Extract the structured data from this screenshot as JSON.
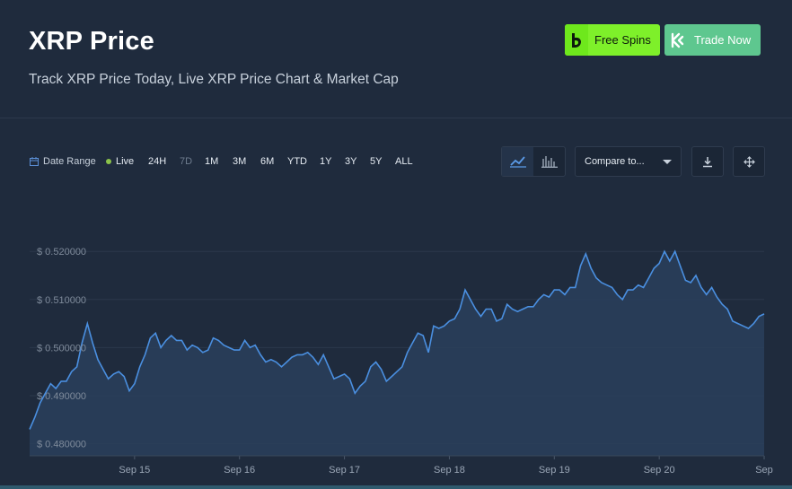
{
  "header": {
    "title": "XRP Price",
    "subtitle": "Track XRP Price Today, Live XRP Price Chart & Market Cap",
    "free_spins_label": "Free Spins",
    "trade_now_label": "Trade Now"
  },
  "toolbar": {
    "date_range_label": "Date Range",
    "live_label": "Live",
    "ranges": [
      "24H",
      "7D",
      "1M",
      "3M",
      "6M",
      "YTD",
      "1Y",
      "3Y",
      "5Y",
      "ALL"
    ],
    "selected_range": "7D",
    "compare_label": "Compare to...",
    "chart_type_selected": "line"
  },
  "colors": {
    "background": "#1f2b3d",
    "line": "#4a8fe0",
    "area_fill": "#2a3f5c",
    "free_spins": "#7ef02a",
    "trade_now": "#5ec78f",
    "live_dot": "#8bc34a"
  },
  "chart_data": {
    "type": "area",
    "yticks": [
      "$ 0.520000",
      "$ 0.510000",
      "$ 0.500000",
      "$ 0.490000",
      "$ 0.480000"
    ],
    "ytick_values": [
      0.52,
      0.51,
      0.5,
      0.49,
      0.48
    ],
    "xticks": [
      "Sep 15",
      "Sep 16",
      "Sep 17",
      "Sep 18",
      "Sep 19",
      "Sep 20",
      "Sep"
    ],
    "ylim": [
      0.4775,
      0.5275
    ],
    "xlim": [
      0,
      7
    ],
    "grid": true,
    "series": [
      {
        "x": [
          0.0,
          0.05,
          0.1,
          0.15,
          0.2,
          0.25,
          0.3,
          0.35,
          0.4,
          0.45,
          0.5,
          0.55,
          0.6,
          0.65,
          0.7,
          0.75,
          0.8,
          0.85,
          0.9,
          0.95,
          1.0,
          1.05,
          1.1,
          1.15,
          1.2,
          1.25,
          1.3,
          1.35,
          1.4,
          1.45,
          1.5,
          1.55,
          1.6,
          1.65,
          1.7,
          1.75,
          1.8,
          1.85,
          1.9,
          1.95,
          2.0,
          2.05,
          2.1,
          2.15,
          2.2,
          2.25,
          2.3,
          2.35,
          2.4,
          2.45,
          2.5,
          2.55,
          2.6,
          2.65,
          2.7,
          2.75,
          2.8,
          2.85,
          2.9,
          2.95,
          3.0,
          3.05,
          3.1,
          3.15,
          3.2,
          3.25,
          3.3,
          3.35,
          3.4,
          3.45,
          3.5,
          3.55,
          3.6,
          3.65,
          3.7,
          3.75,
          3.8,
          3.85,
          3.9,
          3.95,
          4.0,
          4.05,
          4.1,
          4.15,
          4.2,
          4.25,
          4.3,
          4.35,
          4.4,
          4.45,
          4.5,
          4.55,
          4.6,
          4.65,
          4.7,
          4.75,
          4.8,
          4.85,
          4.9,
          4.95,
          5.0,
          5.05,
          5.1,
          5.15,
          5.2,
          5.25,
          5.3,
          5.35,
          5.4,
          5.45,
          5.5,
          5.55,
          5.6,
          5.65,
          5.7,
          5.75,
          5.8,
          5.85,
          5.9,
          5.95,
          6.0,
          6.05,
          6.1,
          6.15,
          6.2,
          6.25,
          6.3,
          6.35,
          6.4,
          6.45,
          6.5,
          6.55,
          6.6,
          6.65,
          6.7,
          6.75,
          6.8,
          6.85,
          6.9,
          6.95,
          7.0
        ],
        "values": [
          0.483,
          0.4855,
          0.4885,
          0.4905,
          0.4925,
          0.4915,
          0.493,
          0.493,
          0.495,
          0.496,
          0.501,
          0.505,
          0.501,
          0.4975,
          0.4955,
          0.4935,
          0.4945,
          0.495,
          0.494,
          0.491,
          0.4925,
          0.496,
          0.4985,
          0.502,
          0.503,
          0.5,
          0.5015,
          0.5025,
          0.5015,
          0.5015,
          0.4995,
          0.5005,
          0.5,
          0.499,
          0.4995,
          0.502,
          0.5015,
          0.5005,
          0.5,
          0.4995,
          0.4995,
          0.5015,
          0.5,
          0.5005,
          0.4985,
          0.497,
          0.4975,
          0.497,
          0.496,
          0.497,
          0.498,
          0.4985,
          0.4985,
          0.499,
          0.498,
          0.4965,
          0.4985,
          0.496,
          0.4935,
          0.494,
          0.4945,
          0.4935,
          0.4905,
          0.492,
          0.493,
          0.496,
          0.497,
          0.4955,
          0.493,
          0.494,
          0.495,
          0.496,
          0.499,
          0.501,
          0.503,
          0.5025,
          0.499,
          0.5045,
          0.504,
          0.5045,
          0.5055,
          0.506,
          0.508,
          0.512,
          0.51,
          0.508,
          0.5065,
          0.508,
          0.508,
          0.5055,
          0.506,
          0.509,
          0.508,
          0.5075,
          0.508,
          0.5085,
          0.5085,
          0.51,
          0.511,
          0.5105,
          0.512,
          0.512,
          0.511,
          0.5125,
          0.5125,
          0.517,
          0.5195,
          0.5165,
          0.5145,
          0.5135,
          0.513,
          0.5125,
          0.511,
          0.51,
          0.512,
          0.512,
          0.513,
          0.5125,
          0.5145,
          0.5165,
          0.5175,
          0.52,
          0.518,
          0.52,
          0.517,
          0.514,
          0.5135,
          0.515,
          0.5125,
          0.511,
          0.5125,
          0.5105,
          0.509,
          0.508,
          0.5055,
          0.505,
          0.5045,
          0.504,
          0.505,
          0.5065,
          0.507
        ]
      }
    ]
  }
}
